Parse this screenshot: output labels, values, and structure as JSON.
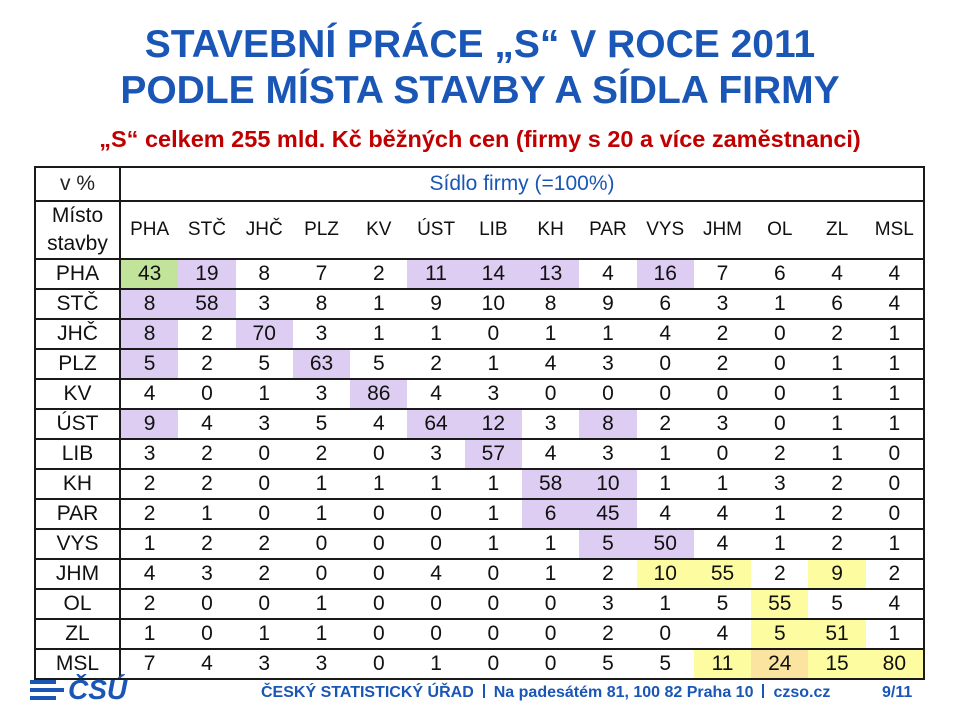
{
  "title_line1": "STAVEBNÍ PRÁCE „S“ V ROCE 2011",
  "title_line2": "PODLE MÍSTA STAVBY A SÍDLA FIRMY",
  "subtitle": "„S“ celkem 255 mld. Kč běžných cen (firmy s 20 a více zaměstnanci)",
  "table": {
    "unit_label": "v %",
    "firm_header": "Sídlo firmy (=100%)",
    "corner_line1": "Místo",
    "corner_line2": "stavby",
    "columns": [
      "PHA",
      "STČ",
      "JHČ",
      "PLZ",
      "KV",
      "ÚST",
      "LIB",
      "KH",
      "PAR",
      "VYS",
      "JHM",
      "OL",
      "ZL",
      "MSL"
    ],
    "rows": [
      {
        "label": "PHA",
        "values": [
          "43",
          "19",
          "8",
          "7",
          "2",
          "11",
          "14",
          "13",
          "4",
          "16",
          "7",
          "6",
          "4",
          "4"
        ]
      },
      {
        "label": "STČ",
        "values": [
          "8",
          "58",
          "3",
          "8",
          "1",
          "9",
          "10",
          "8",
          "9",
          "6",
          "3",
          "1",
          "6",
          "4"
        ]
      },
      {
        "label": "JHČ",
        "values": [
          "8",
          "2",
          "70",
          "3",
          "1",
          "1",
          "0",
          "1",
          "1",
          "4",
          "2",
          "0",
          "2",
          "1"
        ]
      },
      {
        "label": "PLZ",
        "values": [
          "5",
          "2",
          "5",
          "63",
          "5",
          "2",
          "1",
          "4",
          "3",
          "0",
          "2",
          "0",
          "1",
          "1"
        ]
      },
      {
        "label": "KV",
        "values": [
          "4",
          "0",
          "1",
          "3",
          "86",
          "4",
          "3",
          "0",
          "0",
          "0",
          "0",
          "0",
          "1",
          "1"
        ]
      },
      {
        "label": "ÚST",
        "values": [
          "9",
          "4",
          "3",
          "5",
          "4",
          "64",
          "12",
          "3",
          "8",
          "2",
          "3",
          "0",
          "1",
          "1"
        ]
      },
      {
        "label": "LIB",
        "values": [
          "3",
          "2",
          "0",
          "2",
          "0",
          "3",
          "57",
          "4",
          "3",
          "1",
          "0",
          "2",
          "1",
          "0"
        ]
      },
      {
        "label": "KH",
        "values": [
          "2",
          "2",
          "0",
          "1",
          "1",
          "1",
          "1",
          "58",
          "10",
          "1",
          "1",
          "3",
          "2",
          "0"
        ]
      },
      {
        "label": "PAR",
        "values": [
          "2",
          "1",
          "0",
          "1",
          "0",
          "0",
          "1",
          "6",
          "45",
          "4",
          "4",
          "1",
          "2",
          "0"
        ]
      },
      {
        "label": "VYS",
        "values": [
          "1",
          "2",
          "2",
          "0",
          "0",
          "0",
          "1",
          "1",
          "5",
          "50",
          "4",
          "1",
          "2",
          "1"
        ]
      },
      {
        "label": "JHM",
        "values": [
          "4",
          "3",
          "2",
          "0",
          "0",
          "4",
          "0",
          "1",
          "2",
          "10",
          "55",
          "2",
          "9",
          "2"
        ]
      },
      {
        "label": "OL",
        "values": [
          "2",
          "0",
          "0",
          "1",
          "0",
          "0",
          "0",
          "0",
          "3",
          "1",
          "5",
          "55",
          "5",
          "4"
        ]
      },
      {
        "label": "ZL",
        "values": [
          "1",
          "0",
          "1",
          "1",
          "0",
          "0",
          "0",
          "0",
          "2",
          "0",
          "4",
          "5",
          "51",
          "1"
        ]
      },
      {
        "label": "MSL",
        "values": [
          "7",
          "4",
          "3",
          "3",
          "0",
          "1",
          "0",
          "0",
          "5",
          "5",
          "11",
          "24",
          "15",
          "80"
        ]
      }
    ],
    "highlights": {
      "0": {
        "0": "green",
        "1": "purple",
        "5": "purple",
        "6": "purple",
        "7": "purple",
        "9": "purple"
      },
      "1": {
        "0": "purple",
        "1": "purple"
      },
      "2": {
        "0": "purple",
        "2": "purple"
      },
      "3": {
        "0": "purple",
        "3": "purple"
      },
      "4": {
        "4": "purple"
      },
      "5": {
        "0": "purple",
        "5": "purple",
        "6": "purple",
        "8": "purple"
      },
      "6": {
        "6": "purple"
      },
      "7": {
        "7": "purple",
        "8": "purple"
      },
      "8": {
        "7": "purple",
        "8": "purple"
      },
      "9": {
        "8": "purple",
        "9": "purple"
      },
      "10": {
        "9": "yellow",
        "10": "yellow",
        "12": "yellow"
      },
      "11": {
        "11": "yellow"
      },
      "12": {
        "11": "yellow",
        "12": "yellow"
      },
      "13": {
        "10": "yellow",
        "11": "orange",
        "12": "yellow",
        "13": "yellow"
      }
    }
  },
  "colors": {
    "title": "#1a56b5",
    "subtitle": "#c00000",
    "green": "#c2e39a",
    "purple": "#ddcdf2",
    "yellow": "#fdfca0",
    "orange": "#fbe3a0"
  },
  "footer": {
    "logo_text": "ČSÚ",
    "org": "ČESKÝ STATISTICKÝ ÚŘAD",
    "address": "Na padesátém 81, 100 82 Praha 10",
    "web": "czso.cz",
    "page": "9/11"
  }
}
